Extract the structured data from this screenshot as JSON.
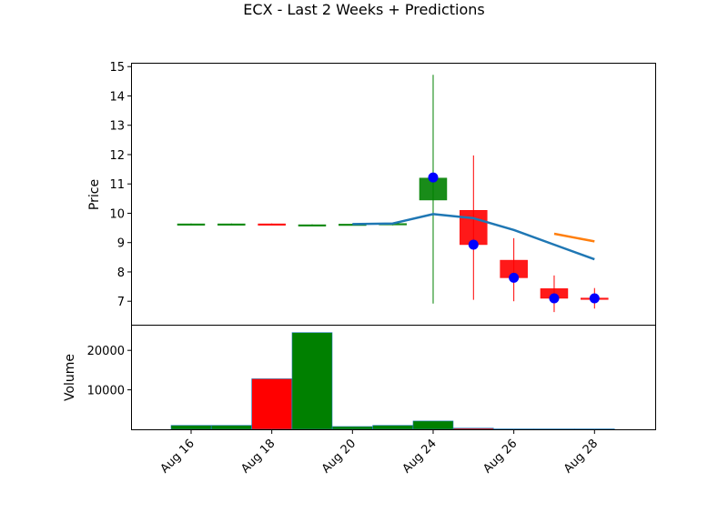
{
  "chart_data": {
    "type": "candlestick",
    "title": "ECX - Last 2 Weeks + Predictions",
    "price_panel": {
      "ylabel": "Price",
      "ylim": [
        6.2,
        15.1
      ],
      "yticks": [
        7,
        8,
        9,
        10,
        11,
        12,
        13,
        14,
        15
      ],
      "candles": [
        {
          "open": 9.63,
          "high": 9.65,
          "low": 9.62,
          "close": 9.64,
          "color": "green"
        },
        {
          "open": 9.63,
          "high": 9.65,
          "low": 9.62,
          "close": 9.64,
          "color": "green"
        },
        {
          "open": 9.64,
          "high": 9.65,
          "low": 9.62,
          "close": 9.63,
          "color": "red"
        },
        {
          "open": 9.6,
          "high": 9.62,
          "low": 9.59,
          "close": 9.61,
          "color": "green"
        },
        {
          "open": 9.62,
          "high": 9.64,
          "low": 9.61,
          "close": 9.63,
          "color": "green"
        },
        {
          "open": 9.6,
          "high": 9.66,
          "low": 9.59,
          "close": 9.65,
          "color": "green"
        },
        {
          "open": 10.45,
          "high": 14.72,
          "low": 6.92,
          "close": 11.2,
          "color": "green"
        },
        {
          "open": 10.1,
          "high": 11.97,
          "low": 7.05,
          "close": 8.93,
          "color": "red"
        },
        {
          "open": 8.4,
          "high": 9.15,
          "low": 7.0,
          "close": 7.8,
          "color": "red"
        },
        {
          "open": 7.43,
          "high": 7.88,
          "low": 6.63,
          "close": 7.1,
          "color": "red"
        },
        {
          "open": 7.11,
          "high": 7.45,
          "low": 6.75,
          "close": 7.09,
          "color": "red"
        }
      ],
      "markers": [
        {
          "index": 6,
          "y": 11.22
        },
        {
          "index": 7,
          "y": 8.93
        },
        {
          "index": 8,
          "y": 7.8
        },
        {
          "index": 9,
          "y": 7.1
        },
        {
          "index": 10,
          "y": 7.1
        }
      ],
      "lines": [
        {
          "color": "#1f77b4",
          "points": [
            [
              4,
              9.63
            ],
            [
              5,
              9.65
            ],
            [
              6,
              9.97
            ],
            [
              7,
              9.83
            ],
            [
              8,
              9.43
            ],
            [
              9,
              8.93
            ],
            [
              10,
              8.43
            ]
          ]
        },
        {
          "color": "#ff7f0e",
          "points": [
            [
              9,
              9.3
            ],
            [
              10,
              9.04
            ]
          ]
        }
      ],
      "up_color": "#008000",
      "down_color": "#ff0000",
      "marker_color": "#0000ff"
    },
    "volume_panel": {
      "ylabel": "Volume",
      "yticks": [
        10000,
        20000
      ],
      "ymax": 26500,
      "bars": [
        {
          "value": 1000,
          "color": "green"
        },
        {
          "value": 1000,
          "color": "green"
        },
        {
          "value": 12800,
          "color": "red"
        },
        {
          "value": 24500,
          "color": "green"
        },
        {
          "value": 700,
          "color": "green"
        },
        {
          "value": 1000,
          "color": "green"
        },
        {
          "value": 2100,
          "color": "green"
        },
        {
          "value": 300,
          "color": "red"
        },
        {
          "value": 100,
          "color": "red"
        },
        {
          "value": 100,
          "color": "red"
        },
        {
          "value": 100,
          "color": "red"
        }
      ]
    },
    "xticks": [
      "Aug 16",
      "Aug 18",
      "Aug 20",
      "Aug 24",
      "Aug 26",
      "Aug 28"
    ],
    "xtick_positions": [
      0,
      2,
      4,
      6,
      8,
      10
    ]
  }
}
